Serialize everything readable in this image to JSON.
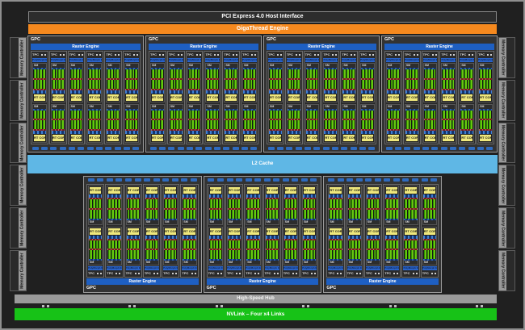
{
  "labels": {
    "pci": "PCI Express 4.0 Host Interface",
    "gigathread": "GigaThread Engine",
    "gpc": "GPC",
    "raster_engine": "Raster Engine",
    "tpc": "TPC",
    "polymorph_engine": "PolyMorph Engine",
    "sm": "SM",
    "rt_core": "RT CORE",
    "l2_cache": "L2 Cache",
    "memory_controller": "Memory Controller",
    "high_speed_hub": "High-Speed Hub",
    "nvlink": "NVLink – Four x4 Links"
  },
  "layout_counts": {
    "top_gpcs": 4,
    "bottom_gpcs": 3,
    "tpcs_per_gpc": 6,
    "sms_per_tpc": 2,
    "memory_controllers_per_side": 6,
    "connector_boxes_per_gpc": 12,
    "hub_connector_pairs": 6
  },
  "colors": {
    "background": "#202020",
    "frame_gray": "#8f8f8f",
    "pci_bar": "#2d2d2d",
    "gigathread_orange": "#F6891E",
    "raster_blue": "#1E5FC2",
    "polymorph_blue": "#2A63C8",
    "core_green": "#66C80F",
    "core_green_dark": "#2F8F00",
    "rt_core_yellow": "#EFE87C",
    "l2_blue": "#5FB7E5",
    "memory_controller_gray": "#9A9A9A",
    "hub_gray": "#9A9A9A",
    "nvlink_green": "#17C217"
  }
}
